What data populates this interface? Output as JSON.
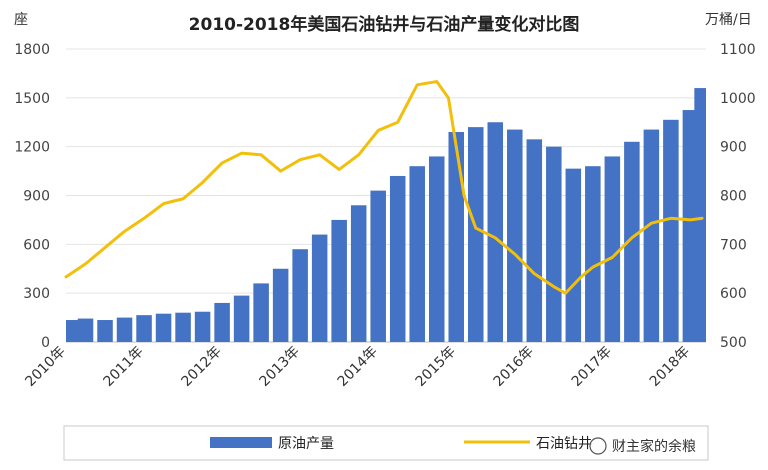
{
  "chart_data": {
    "type": "bar+line",
    "title": "2010-2018年美国石油钻井与石油产量变化对比图",
    "left_axis": {
      "unit": "座",
      "range": [
        0,
        1800
      ],
      "ticks": [
        "0",
        "300",
        "600",
        "900",
        "1200",
        "1500",
        "1800"
      ]
    },
    "right_axis": {
      "unit": "万桶/日",
      "range": [
        500,
        1100
      ],
      "ticks": [
        "500",
        "600",
        "700",
        "800",
        "900",
        "1000",
        "1100"
      ]
    },
    "x_ticks": [
      "2010年",
      "2011年",
      "2012年",
      "2013年",
      "2014年",
      "2015年",
      "2016年",
      "2017年",
      "2018年"
    ],
    "x_range": [
      2010.0,
      2018.2
    ],
    "grid": true,
    "legend_position": "bottom",
    "series": [
      {
        "name": "原油产量",
        "type": "bar",
        "axis": "right",
        "color": "#4472C4",
        "x": [
          2010.0,
          2010.25,
          2010.5,
          2010.75,
          2011.0,
          2011.25,
          2011.5,
          2011.75,
          2012.0,
          2012.25,
          2012.5,
          2012.75,
          2013.0,
          2013.25,
          2013.5,
          2013.75,
          2014.0,
          2014.25,
          2014.5,
          2014.75,
          2015.0,
          2015.25,
          2015.5,
          2015.75,
          2016.0,
          2016.25,
          2016.5,
          2016.75,
          2017.0,
          2017.25,
          2017.5,
          2017.75,
          2018.0,
          2018.15
        ],
        "values": [
          545,
          548,
          545,
          550,
          555,
          558,
          560,
          562,
          580,
          595,
          620,
          650,
          690,
          720,
          750,
          780,
          810,
          840,
          860,
          880,
          930,
          940,
          950,
          935,
          915,
          900,
          855,
          860,
          880,
          910,
          935,
          955,
          975,
          1020
        ]
      },
      {
        "name": "石油钻井",
        "type": "line",
        "axis": "left",
        "color": "#F2C00B",
        "x": [
          2010.0,
          2010.25,
          2010.5,
          2010.75,
          2011.0,
          2011.25,
          2011.5,
          2011.75,
          2012.0,
          2012.25,
          2012.5,
          2012.75,
          2013.0,
          2013.25,
          2013.5,
          2013.75,
          2014.0,
          2014.25,
          2014.5,
          2014.75,
          2014.9,
          2015.0,
          2015.1,
          2015.25,
          2015.5,
          2015.75,
          2016.0,
          2016.25,
          2016.4,
          2016.6,
          2016.75,
          2017.0,
          2017.25,
          2017.5,
          2017.75,
          2018.0,
          2018.15
        ],
        "values": [
          400,
          480,
          580,
          680,
          760,
          850,
          880,
          980,
          1100,
          1160,
          1150,
          1050,
          1120,
          1150,
          1060,
          1150,
          1300,
          1350,
          1580,
          1600,
          1500,
          1200,
          900,
          700,
          640,
          540,
          420,
          340,
          300,
          400,
          460,
          520,
          640,
          730,
          760,
          750,
          760
        ]
      }
    ]
  },
  "watermark": "财主家的余粮"
}
